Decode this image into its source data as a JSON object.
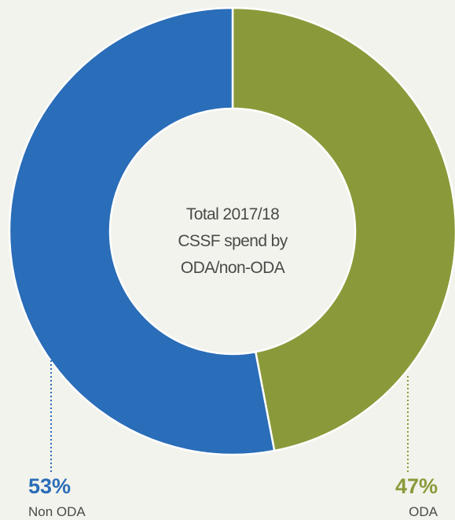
{
  "chart_data": {
    "type": "pie",
    "title_lines": [
      "Total 2017/18",
      "CSSF spend by",
      "ODA/non-ODA"
    ],
    "slices": [
      {
        "label": "ODA",
        "value": 47,
        "value_label": "47%",
        "color": "#8a9a3a"
      },
      {
        "label": "Non ODA",
        "value": 53,
        "value_label": "53%",
        "color": "#2a6db8"
      }
    ],
    "donut": true
  },
  "colors": {
    "background": "#f2f3ec",
    "center": "#f2f3ec",
    "separator": "#ffffff"
  }
}
